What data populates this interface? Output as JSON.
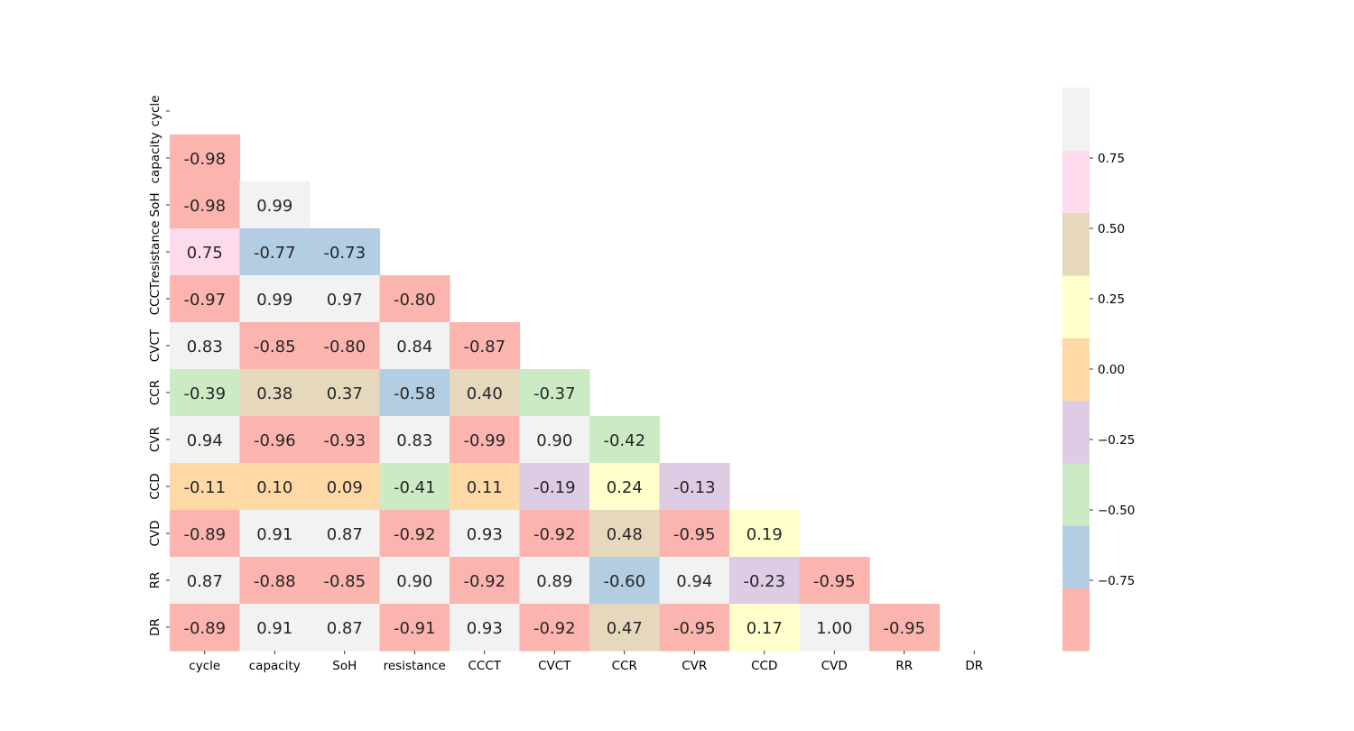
{
  "chart_data": {
    "type": "heatmap",
    "title": "",
    "xlabel": "",
    "ylabel": "",
    "triangle": "lower",
    "categories": [
      "cycle",
      "capacity",
      "SoH",
      "resistance",
      "CCCT",
      "CVCT",
      "CCR",
      "CVR",
      "CCD",
      "CVD",
      "RR",
      "DR"
    ],
    "matrix": [
      [
        null,
        null,
        null,
        null,
        null,
        null,
        null,
        null,
        null,
        null,
        null,
        null
      ],
      [
        -0.98,
        null,
        null,
        null,
        null,
        null,
        null,
        null,
        null,
        null,
        null,
        null
      ],
      [
        -0.98,
        0.99,
        null,
        null,
        null,
        null,
        null,
        null,
        null,
        null,
        null,
        null
      ],
      [
        0.75,
        -0.77,
        -0.73,
        null,
        null,
        null,
        null,
        null,
        null,
        null,
        null,
        null
      ],
      [
        -0.97,
        0.99,
        0.97,
        -0.8,
        null,
        null,
        null,
        null,
        null,
        null,
        null,
        null
      ],
      [
        0.83,
        -0.85,
        -0.8,
        0.84,
        -0.87,
        null,
        null,
        null,
        null,
        null,
        null,
        null
      ],
      [
        -0.39,
        0.38,
        0.37,
        -0.58,
        0.4,
        -0.37,
        null,
        null,
        null,
        null,
        null,
        null
      ],
      [
        0.94,
        -0.96,
        -0.93,
        0.83,
        -0.99,
        0.9,
        -0.42,
        null,
        null,
        null,
        null,
        null
      ],
      [
        -0.11,
        0.1,
        0.09,
        -0.41,
        0.11,
        -0.19,
        0.24,
        -0.13,
        null,
        null,
        null,
        null
      ],
      [
        -0.89,
        0.91,
        0.87,
        -0.92,
        0.93,
        -0.92,
        0.48,
        -0.95,
        0.19,
        null,
        null,
        null
      ],
      [
        0.87,
        -0.88,
        -0.85,
        0.9,
        -0.92,
        0.89,
        -0.6,
        0.94,
        -0.23,
        -0.95,
        null,
        null
      ],
      [
        -0.89,
        0.91,
        0.87,
        -0.91,
        0.93,
        -0.92,
        0.47,
        -0.95,
        0.17,
        1.0,
        -0.95,
        null
      ]
    ],
    "colorbar": {
      "min": -1.0,
      "max": 1.0,
      "ticks": [
        -0.75,
        -0.5,
        -0.25,
        0.0,
        0.25,
        0.5,
        0.75
      ],
      "tick_labels": [
        "−0.75",
        "−0.50",
        "−0.25",
        "0.00",
        "0.25",
        "0.50",
        "0.75"
      ]
    },
    "colors": [
      "#fbb4ae",
      "#b3cde3",
      "#ccebc5",
      "#decbe4",
      "#fed9a6",
      "#ffffcc",
      "#e5d8bd",
      "#fddaec",
      "#f2f2f2"
    ]
  }
}
